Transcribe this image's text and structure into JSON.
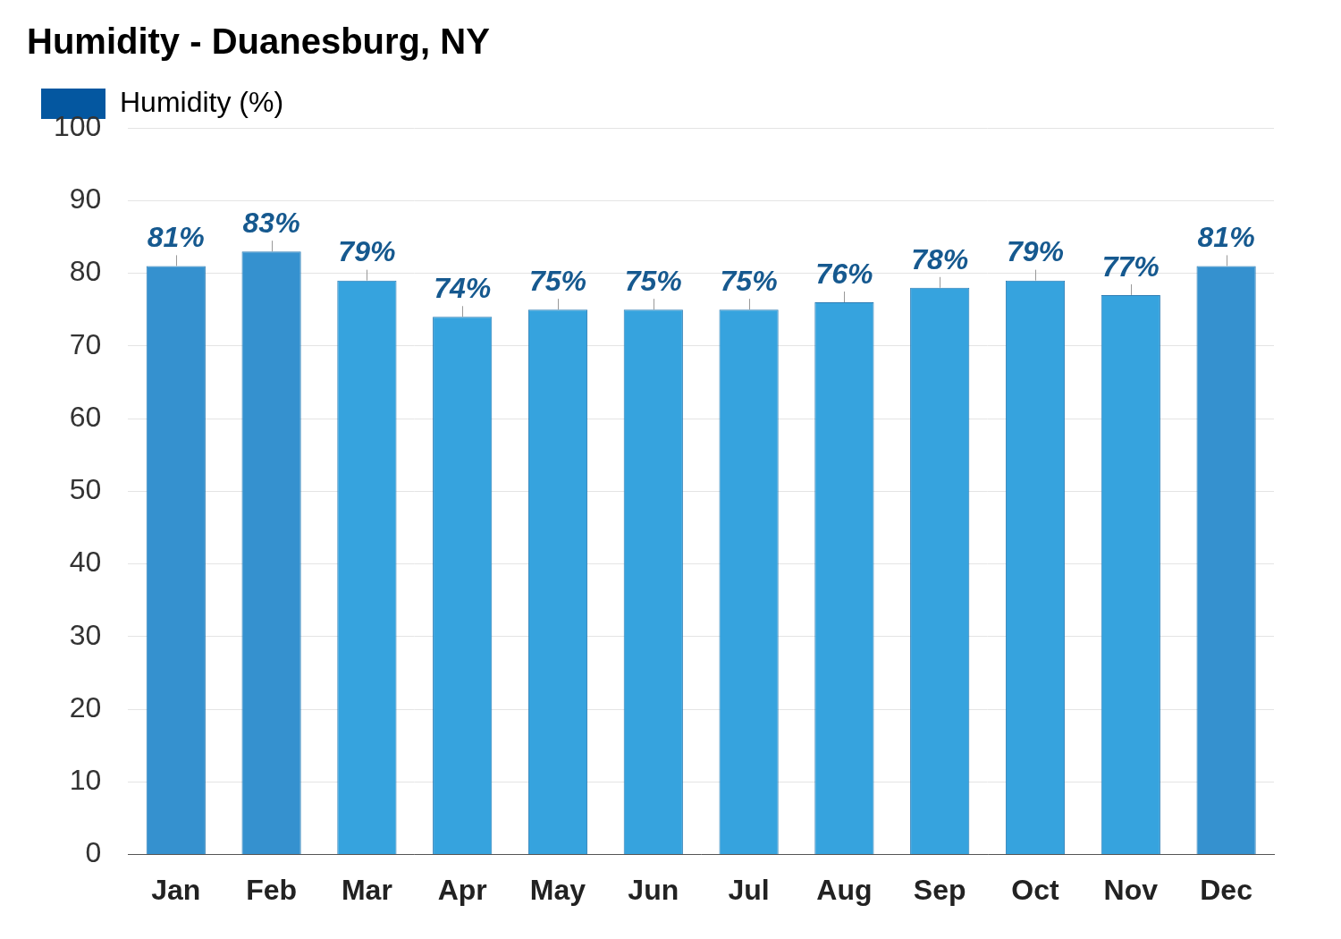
{
  "chart_data": {
    "type": "bar",
    "title": "Humidity - Duanesburg, NY",
    "categories": [
      "Jan",
      "Feb",
      "Mar",
      "Apr",
      "May",
      "Jun",
      "Jul",
      "Aug",
      "Sep",
      "Oct",
      "Nov",
      "Dec"
    ],
    "series": [
      {
        "name": "Humidity (%)",
        "color": "#0457a0",
        "colors": [
          "#3591cf",
          "#3591cf",
          "#36a3de",
          "#36a3de",
          "#36a3de",
          "#36a3de",
          "#36a3de",
          "#36a3de",
          "#36a3de",
          "#36a3de",
          "#36a3de",
          "#3591cf"
        ],
        "values": [
          81,
          83,
          79,
          74,
          75,
          75,
          75,
          76,
          78,
          79,
          77,
          81
        ],
        "value_labels": [
          "81%",
          "83%",
          "79%",
          "74%",
          "75%",
          "75%",
          "75%",
          "76%",
          "78%",
          "79%",
          "77%",
          "81%"
        ]
      }
    ],
    "ylim": [
      0,
      100
    ],
    "yticks": [
      0,
      10,
      20,
      30,
      40,
      50,
      60,
      70,
      80,
      90,
      100
    ],
    "grid": true,
    "legend": "top-left",
    "data_labels": true
  }
}
